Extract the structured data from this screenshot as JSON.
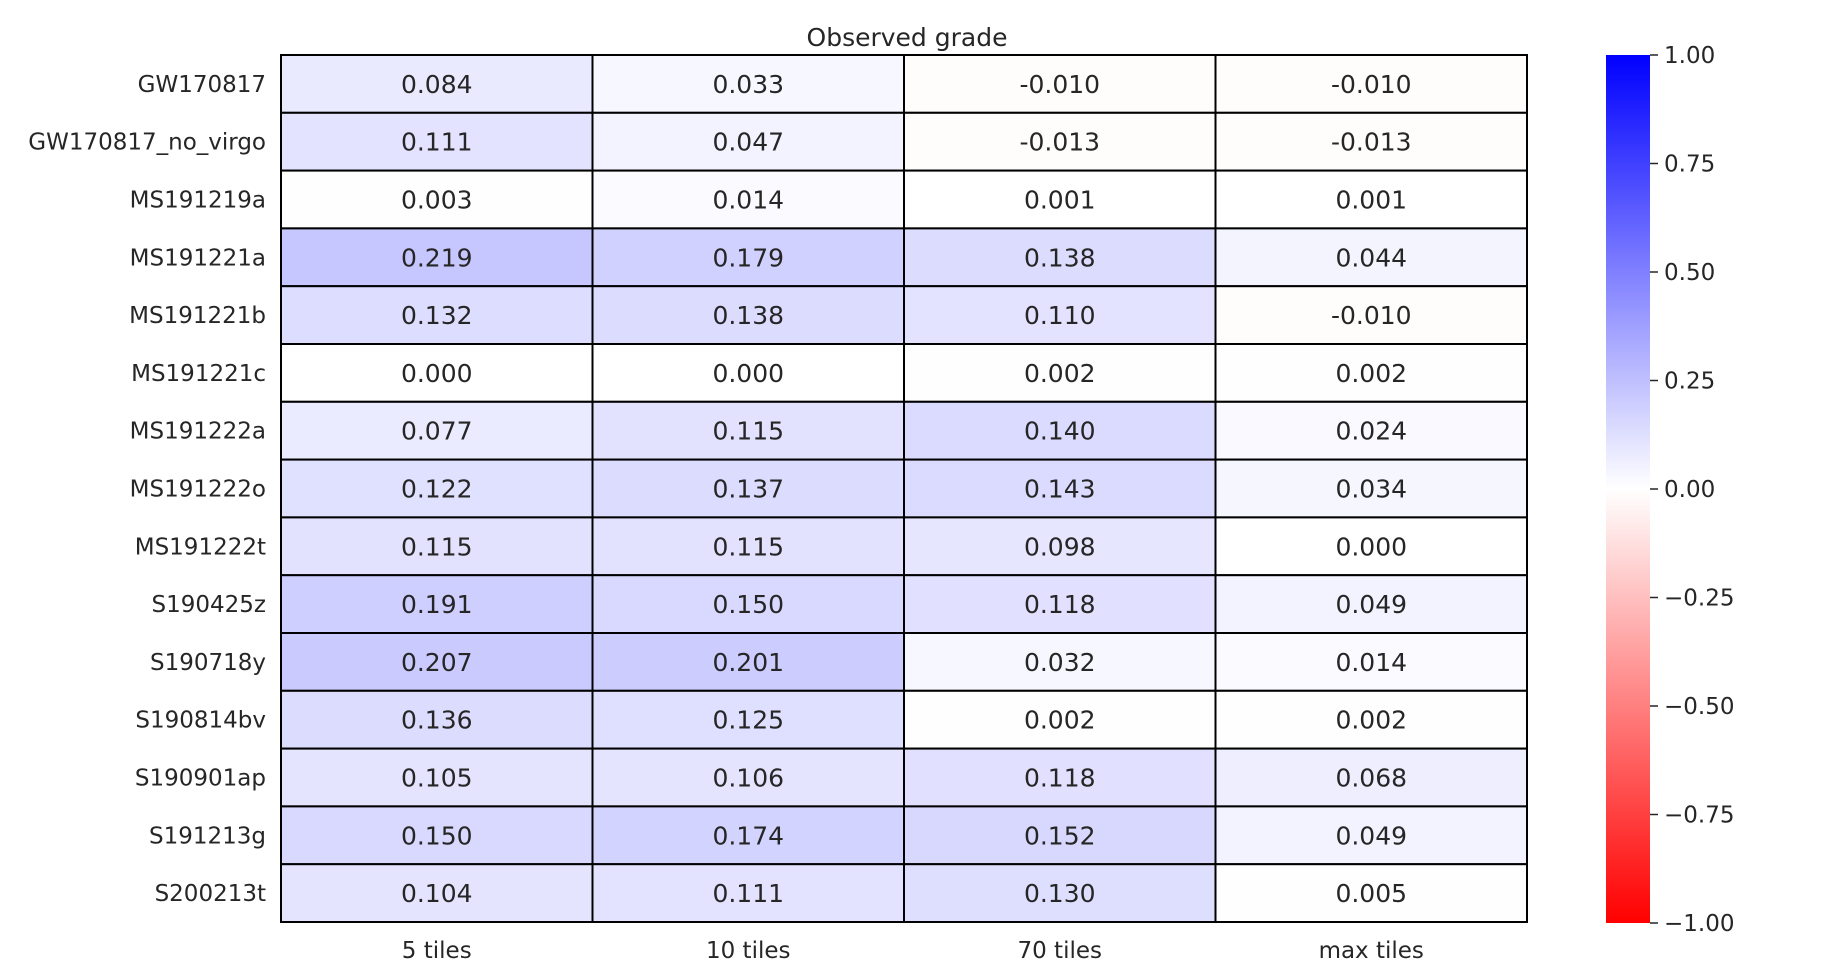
{
  "chart_data": {
    "type": "heatmap",
    "title": "Observed grade",
    "columns": [
      "5 tiles",
      "10 tiles",
      "70 tiles",
      "max tiles"
    ],
    "rows": [
      "GW170817",
      "GW170817_no_virgo",
      "MS191219a",
      "MS191221a",
      "MS191221b",
      "MS191221c",
      "MS191222a",
      "MS191222o",
      "MS191222t",
      "S190425z",
      "S190718y",
      "S190814bv",
      "S190901ap",
      "S191213g",
      "S200213t"
    ],
    "values": [
      [
        "0.084",
        "0.033",
        "-0.010",
        "-0.010"
      ],
      [
        "0.111",
        "0.047",
        "-0.013",
        "-0.013"
      ],
      [
        "0.003",
        "0.014",
        "0.001",
        "0.001"
      ],
      [
        "0.219",
        "0.179",
        "0.138",
        "0.044"
      ],
      [
        "0.132",
        "0.138",
        "0.110",
        "-0.010"
      ],
      [
        "0.000",
        "0.000",
        "0.002",
        "0.002"
      ],
      [
        "0.077",
        "0.115",
        "0.140",
        "0.024"
      ],
      [
        "0.122",
        "0.137",
        "0.143",
        "0.034"
      ],
      [
        "0.115",
        "0.115",
        "0.098",
        "0.000"
      ],
      [
        "0.191",
        "0.150",
        "0.118",
        "0.049"
      ],
      [
        "0.207",
        "0.201",
        "0.032",
        "0.014"
      ],
      [
        "0.136",
        "0.125",
        "0.002",
        "0.002"
      ],
      [
        "0.105",
        "0.106",
        "0.118",
        "0.068"
      ],
      [
        "0.150",
        "0.174",
        "0.152",
        "0.049"
      ],
      [
        "0.104",
        "0.111",
        "0.130",
        "0.005"
      ]
    ],
    "colorbar": {
      "vmin": -1.0,
      "vmax": 1.0,
      "colormap": "bwr",
      "low_color": "#ff0000",
      "mid_color": "#ffffff",
      "high_color": "#0000ff",
      "ticks": [
        1.0,
        0.75,
        0.5,
        0.25,
        0.0,
        -0.25,
        -0.5,
        -0.75,
        -1.0
      ],
      "tick_labels": [
        "1.00",
        "0.75",
        "0.50",
        "0.25",
        "0.00",
        "−0.25",
        "−0.50",
        "−0.75",
        "−1.00"
      ]
    },
    "gridlines": true,
    "grid_color": "#000000"
  }
}
